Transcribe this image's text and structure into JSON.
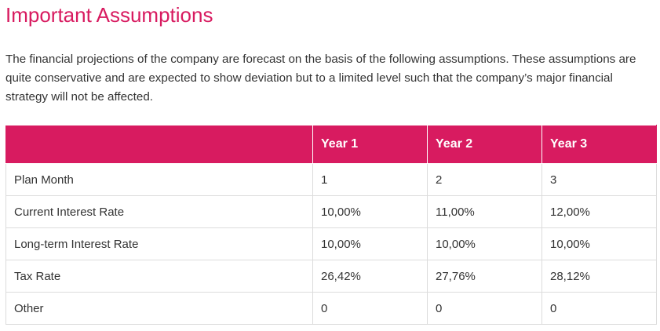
{
  "title": "Important Assumptions",
  "intro": "The financial projections of the company are forecast on the basis of the following assumptions. These assumptions are quite conservative and are expected to show deviation but to a limited level such that the company’s major financial strategy will not be affected.",
  "table": {
    "headers": [
      "",
      "Year 1",
      "Year 2",
      "Year 3"
    ],
    "rows": [
      [
        "Plan Month",
        "1",
        "2",
        "3"
      ],
      [
        "Current Interest Rate",
        "10,00%",
        "11,00%",
        "12,00%"
      ],
      [
        "Long-term Interest Rate",
        "10,00%",
        "10,00%",
        "10,00%"
      ],
      [
        "Tax Rate",
        "26,42%",
        "27,76%",
        "28,12%"
      ],
      [
        "Other",
        "0",
        "0",
        "0"
      ]
    ]
  },
  "colors": {
    "accent": "#d81b60",
    "text": "#333333",
    "border": "#dcdcdc"
  }
}
